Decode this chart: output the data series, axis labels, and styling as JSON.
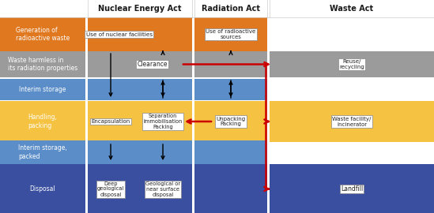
{
  "fig_width": 5.49,
  "fig_height": 2.7,
  "dpi": 100,
  "bg_color": "#ffffff",
  "row_colors": [
    "#E07820",
    "#9B9B9B",
    "#5B8DC8",
    "#F5C242",
    "#5B8DC8",
    "#3A4FA0"
  ],
  "row_labels": [
    "Generation of\nradioactive waste",
    "Waste harmless in\nits radiation properties",
    "Interim storage",
    "Handling,\npacking",
    "Interim storage,\npacked",
    "Disposal"
  ],
  "orange": "#E07820",
  "gray": "#9B9B9B",
  "blue": "#5B8DC8",
  "yellow": "#F5C242",
  "darkblue": "#3A4FA0",
  "red_arrow": "#CC0000",
  "black": "#1a1a1a"
}
